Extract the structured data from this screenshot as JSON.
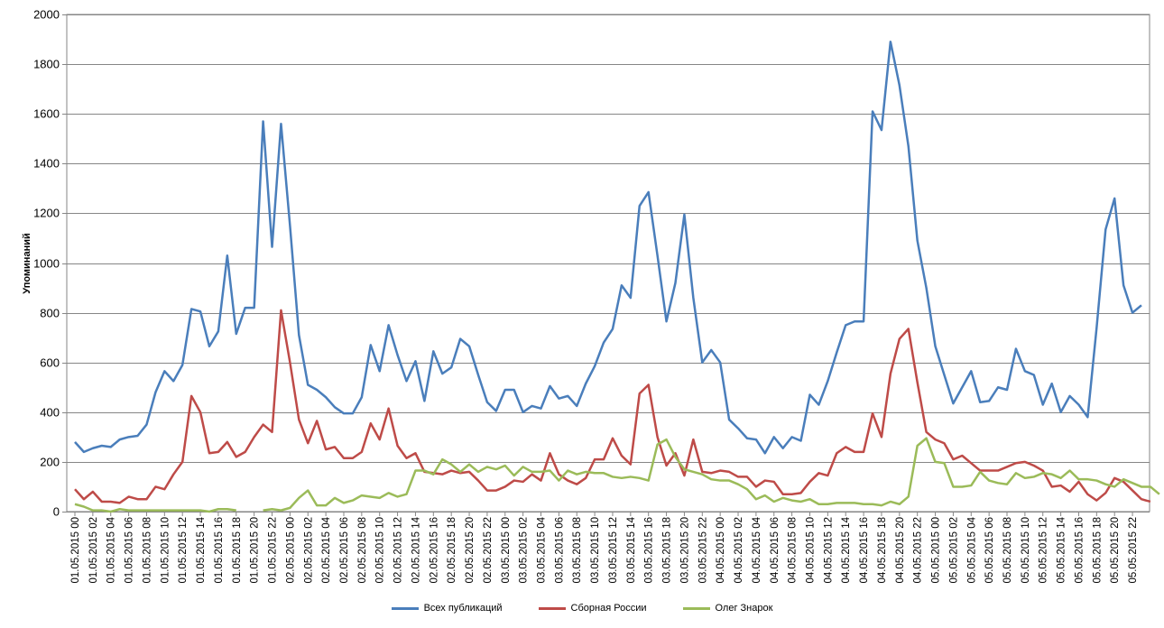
{
  "chart_data": {
    "type": "line",
    "ylabel": "Упоминаний",
    "ylim": [
      0,
      2000
    ],
    "yticks": [
      "0",
      "200",
      "400",
      "600",
      "800",
      "1000",
      "1200",
      "1400",
      "1600",
      "1800",
      "2000"
    ],
    "grid": true,
    "legend_position": "bottom",
    "x_tick_labels": [
      "01.05.2015 00",
      "01.05.2015 02",
      "01.05.2015 04",
      "01.05.2015 06",
      "01.05.2015 08",
      "01.05.2015 10",
      "01.05.2015 12",
      "01.05.2015 14",
      "01.05.2015 16",
      "01.05.2015 18",
      "01.05.2015 20",
      "01.05.2015 22",
      "02.05.2015 00",
      "02.05.2015 02",
      "02.05.2015 04",
      "02.05.2015 06",
      "02.05.2015 08",
      "02.05.2015 10",
      "02.05.2015 12",
      "02.05.2015 14",
      "02.05.2015 16",
      "02.05.2015 18",
      "02.05.2015 20",
      "02.05.2015 22",
      "03.05.2015 00",
      "03.05.2015 02",
      "03.05.2015 04",
      "03.05.2015 06",
      "03.05.2015 08",
      "03.05.2015 10",
      "03.05.2015 12",
      "03.05.2015 14",
      "03.05.2015 16",
      "03.05.2015 18",
      "03.05.2015 20",
      "03.05.2015 22",
      "04.05.2015 00",
      "04.05.2015 02",
      "04.05.2015 04",
      "04.05.2015 06",
      "04.05.2015 08",
      "04.05.2015 10",
      "04.05.2015 12",
      "04.05.2015 14",
      "04.05.2015 16",
      "04.05.2015 18",
      "04.05.2015 20",
      "04.05.2015 22",
      "05.05.2015 00",
      "05.05.2015 02",
      "05.05.2015 04",
      "05.05.2015 06",
      "05.05.2015 08",
      "05.05.2015 10",
      "05.05.2015 12",
      "05.05.2015 14",
      "05.05.2015 16",
      "05.05.2015 18",
      "05.05.2015 20",
      "05.05.2015 22"
    ],
    "series": [
      {
        "name": "Всех публикаций",
        "color": "#4a7ebb",
        "values": [
          280,
          240,
          255,
          265,
          260,
          290,
          300,
          305,
          350,
          480,
          565,
          525,
          590,
          815,
          805,
          665,
          725,
          1030,
          715,
          820,
          820,
          1570,
          1065,
          1560,
          1150,
          710,
          510,
          490,
          460,
          420,
          395,
          395,
          460,
          670,
          565,
          750,
          630,
          525,
          605,
          445,
          645,
          555,
          580,
          695,
          665,
          550,
          440,
          405,
          490,
          490,
          400,
          425,
          415,
          505,
          455,
          465,
          425,
          515,
          585,
          680,
          735,
          910,
          860,
          1230,
          1285,
          1030,
          765,
          920,
          1195,
          860,
          600,
          650,
          600,
          370,
          335,
          295,
          290,
          235,
          300,
          255,
          300,
          285,
          470,
          430,
          525,
          640,
          750,
          765,
          765,
          1610,
          1535,
          1890,
          1715,
          1470,
          1090,
          900,
          665,
          550,
          435,
          500,
          565,
          440,
          445,
          500,
          490,
          655,
          565,
          550,
          430,
          515,
          400,
          465,
          430,
          380,
          740,
          1135,
          1260,
          910,
          800,
          830
        ]
      },
      {
        "name": "Сборная России",
        "color": "#be4b48",
        "values": [
          90,
          50,
          80,
          40,
          40,
          35,
          60,
          50,
          50,
          100,
          90,
          150,
          200,
          465,
          400,
          235,
          240,
          280,
          220,
          240,
          300,
          350,
          320,
          810,
          600,
          370,
          275,
          365,
          250,
          260,
          215,
          215,
          240,
          355,
          290,
          415,
          265,
          215,
          235,
          160,
          155,
          150,
          165,
          155,
          160,
          125,
          85,
          85,
          100,
          125,
          120,
          150,
          125,
          235,
          150,
          125,
          110,
          135,
          210,
          210,
          295,
          225,
          190,
          475,
          510,
          300,
          185,
          235,
          145,
          290,
          160,
          155,
          165,
          160,
          140,
          140,
          100,
          125,
          120,
          70,
          70,
          75,
          120,
          155,
          145,
          235,
          260,
          240,
          240,
          395,
          300,
          555,
          695,
          735,
          520,
          320,
          290,
          275,
          210,
          225,
          195,
          165,
          165,
          165,
          180,
          195,
          200,
          185,
          165,
          100,
          105,
          80,
          120,
          70,
          45,
          75,
          135,
          120,
          85,
          50,
          40
        ]
      },
      {
        "name": "Олег Знарок",
        "color": "#9bbb59",
        "values": [
          30,
          20,
          5,
          5,
          0,
          10,
          5,
          5,
          5,
          5,
          5,
          5,
          5,
          5,
          5,
          0,
          10,
          10,
          5,
          null,
          null,
          5,
          10,
          5,
          15,
          55,
          85,
          25,
          25,
          55,
          35,
          45,
          65,
          60,
          55,
          75,
          60,
          70,
          165,
          165,
          150,
          210,
          190,
          160,
          190,
          160,
          180,
          170,
          185,
          145,
          180,
          160,
          160,
          165,
          125,
          165,
          150,
          160,
          155,
          155,
          140,
          135,
          140,
          135,
          125,
          270,
          290,
          220,
          170,
          160,
          150,
          130,
          125,
          125,
          110,
          90,
          50,
          65,
          40,
          55,
          45,
          40,
          50,
          30,
          30,
          35,
          35,
          35,
          30,
          30,
          25,
          40,
          30,
          60,
          265,
          295,
          200,
          195,
          100,
          100,
          105,
          160,
          125,
          115,
          110,
          155,
          135,
          140,
          155,
          150,
          135,
          165,
          130,
          130,
          125,
          110,
          100,
          130,
          115,
          100,
          100,
          70
        ]
      }
    ]
  }
}
